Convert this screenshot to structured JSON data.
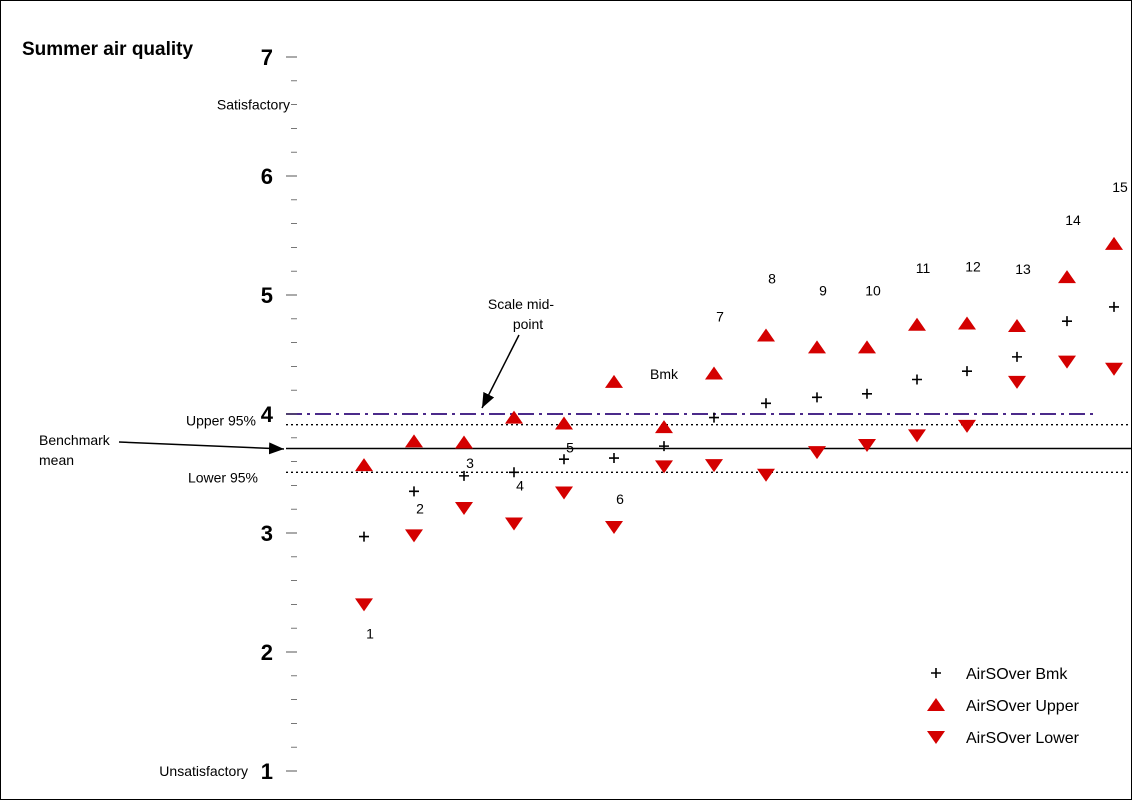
{
  "chart_data": {
    "type": "scatter",
    "title": "Summer air quality",
    "ylim": [
      1,
      7
    ],
    "y_ticks": [
      "1",
      "2",
      "3",
      "4",
      "5",
      "6",
      "7"
    ],
    "y_scale_labels": {
      "top": "Satisfactory",
      "bottom": "Unsatisfactory"
    },
    "x": [
      "1",
      "2",
      "3",
      "4",
      "5",
      "6",
      "Bmk",
      "7",
      "8",
      "9",
      "10",
      "11",
      "12",
      "13",
      "14",
      "15"
    ],
    "series": [
      {
        "name": "AirSOver Bmk",
        "marker": "plus",
        "color": "#000000",
        "values": [
          2.97,
          3.35,
          3.48,
          3.51,
          3.62,
          3.63,
          3.73,
          3.97,
          4.09,
          4.14,
          4.17,
          4.29,
          4.36,
          4.48,
          4.78,
          4.9
        ]
      },
      {
        "name": "AirSOver Upper",
        "marker": "triangle-up",
        "color": "#d40000",
        "values": [
          3.57,
          3.77,
          3.76,
          3.97,
          3.92,
          4.27,
          3.89,
          4.34,
          4.66,
          4.56,
          4.56,
          4.75,
          4.76,
          4.74,
          5.15,
          5.43
        ]
      },
      {
        "name": "AirSOver Lower",
        "marker": "triangle-down",
        "color": "#d40000",
        "values": [
          2.4,
          2.98,
          3.21,
          3.08,
          3.34,
          3.05,
          3.56,
          3.57,
          3.49,
          3.68,
          3.74,
          3.82,
          3.9,
          4.27,
          4.44,
          4.38
        ]
      }
    ],
    "reference_lines": [
      {
        "label": "Scale mid-point",
        "y": 4.0,
        "style": "dash-dot",
        "color": "#4b2a8a"
      },
      {
        "label": "Upper 95%",
        "y": 3.91,
        "style": "dotted",
        "color": "#000000"
      },
      {
        "label": "Benchmark mean",
        "y": 3.71,
        "style": "solid",
        "color": "#000000"
      },
      {
        "label": "Lower 95%",
        "y": 3.51,
        "style": "dotted",
        "color": "#000000"
      }
    ],
    "annotations": {
      "midpoint": "Scale mid-\npoint",
      "benchmark": "Benchmark\nmean"
    },
    "legend_position": "bottom-right",
    "grid": false
  }
}
